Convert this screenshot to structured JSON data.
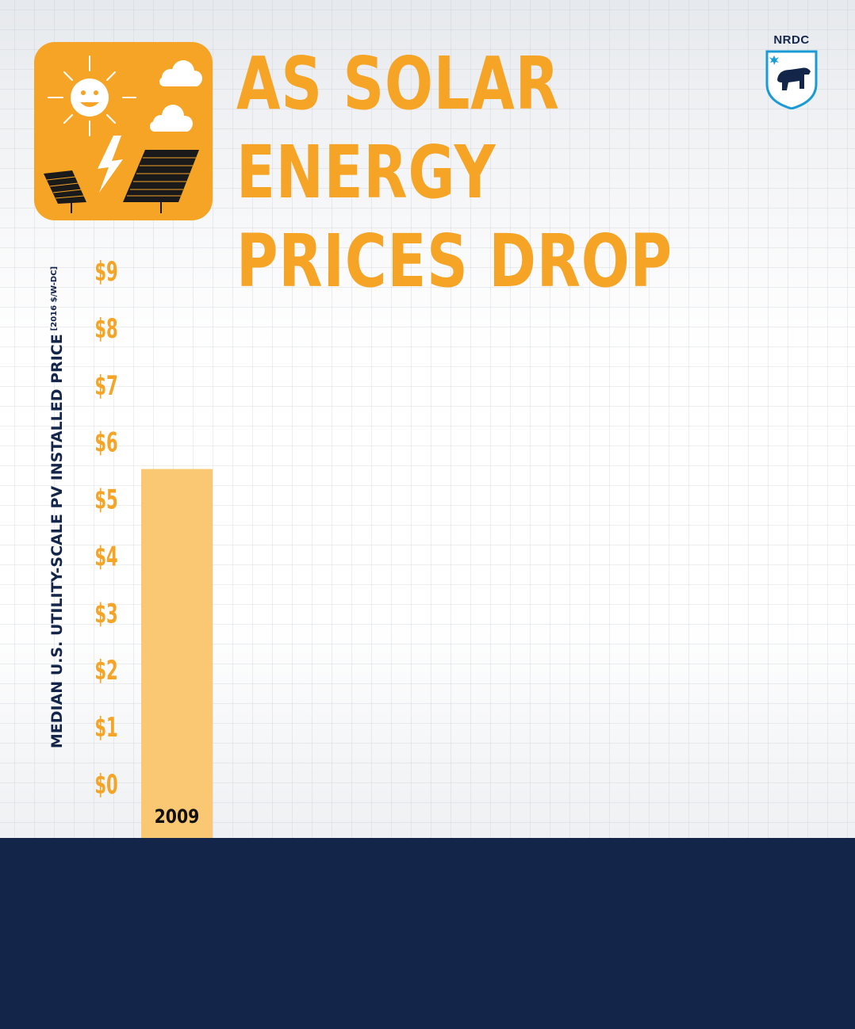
{
  "title": {
    "lines": [
      "AS SOLAR",
      "ENERGY",
      "PRICES DROP"
    ]
  },
  "logo": {
    "text": "NRDC",
    "icon": "bear-shield-icon"
  },
  "hero_icon": "solar-panel-sun-icon",
  "colors": {
    "accent": "#f5a425",
    "bar": "#fac772",
    "navy": "#13264a"
  },
  "chart_data": {
    "type": "bar",
    "ylabel": "MEDIAN U.S. UTILITY-SCALE PV INSTALLED PRICE",
    "yunit": "[2016 $/W-DC]",
    "ylim": [
      0,
      9
    ],
    "yticks": [
      "$0",
      "$1",
      "$2",
      "$3",
      "$4",
      "$5",
      "$6",
      "$7",
      "$8",
      "$9"
    ],
    "categories": [
      "2009"
    ],
    "values": [
      5.5
    ],
    "grid": true
  }
}
